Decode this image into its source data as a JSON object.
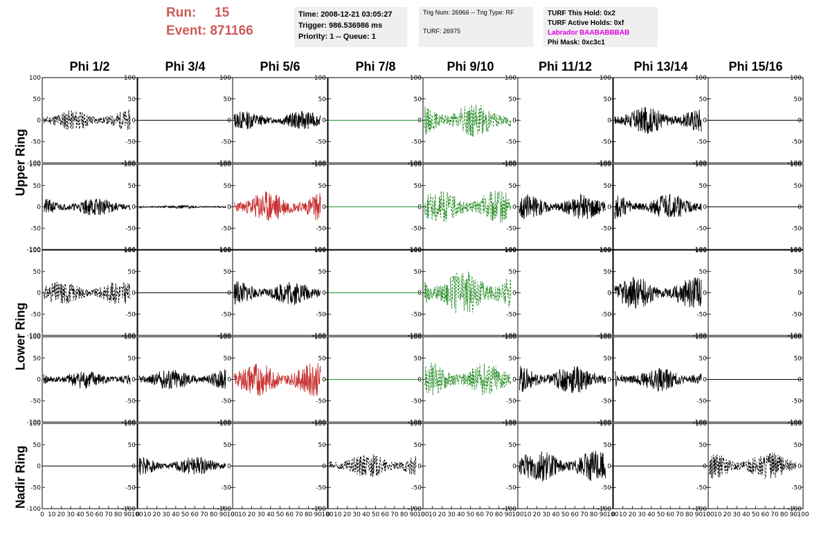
{
  "header": {
    "run_label": "Run:",
    "run_value": "15",
    "event_label": "Event:",
    "event_value": "871166",
    "time": "Time: 2008-12-21 03:05:27",
    "trigger": "Trigger: 986.536986 ms",
    "priority": "Priority: 1 -- Queue: 1",
    "trig_num": "Trig Num: 26966 -- Trig Type: RF",
    "turf": "TURF: 26975",
    "turf_hold": "TURF This Hold: 0x2",
    "turf_active": "TURF Active Holds: 0xf",
    "labrador": "Labrador BAABABBBAB",
    "phi_mask": "Phi Mask: 0xc3c1"
  },
  "columns": [
    "Phi 1/2",
    "Phi 3/4",
    "Phi 5/6",
    "Phi 7/8",
    "Phi 9/10",
    "Phi 11/12",
    "Phi 13/14",
    "Phi 15/16"
  ],
  "ring_labels": [
    "Upper Ring",
    "Lower Ring",
    "Nadir Ring"
  ],
  "colors": {
    "black": "#000000",
    "red": "#c83232",
    "green": "#228b22",
    "run_text": "#cd5a55",
    "labrador": "#e000e0",
    "box_bg": "#efefef"
  },
  "chart_data": {
    "type": "line",
    "description_units": "waveform amplitude vs sample",
    "xlim": [
      0,
      100
    ],
    "ylim": [
      -100,
      100
    ],
    "x_ticks": [
      "0",
      "10",
      "20",
      "30",
      "40",
      "50",
      "60",
      "70",
      "80",
      "90",
      "100"
    ],
    "y_ticks": [
      "-100",
      "-50",
      "0",
      "50",
      "100"
    ],
    "rows": [
      {
        "row": 0,
        "cells": [
          {
            "style": "dashed",
            "color": "black",
            "amp": 25,
            "seed": 11
          },
          {
            "style": "flat",
            "color": "black",
            "amp": 0,
            "seed": 0
          },
          {
            "style": "solid",
            "color": "black",
            "amp": 22,
            "seed": 13
          },
          {
            "style": "flat",
            "color": "green",
            "amp": 0,
            "seed": 0
          },
          {
            "style": "dashed",
            "color": "green",
            "amp": 40,
            "seed": 15
          },
          {
            "style": "none",
            "color": "black",
            "amp": 0,
            "seed": 0
          },
          {
            "style": "solid",
            "color": "black",
            "amp": 32,
            "seed": 17
          },
          {
            "style": "flat",
            "color": "black",
            "amp": 0,
            "seed": 0
          }
        ]
      },
      {
        "row": 1,
        "cells": [
          {
            "style": "solid",
            "color": "black",
            "amp": 22,
            "seed": 21
          },
          {
            "style": "solid",
            "color": "black",
            "amp": 4,
            "seed": 22
          },
          {
            "style": "solid",
            "color": "red",
            "amp": 38,
            "seed": 23
          },
          {
            "style": "flat",
            "color": "green",
            "amp": 0,
            "seed": 0
          },
          {
            "style": "dashed",
            "color": "green",
            "amp": 40,
            "seed": 25
          },
          {
            "style": "solid",
            "color": "black",
            "amp": 30,
            "seed": 26
          },
          {
            "style": "solid",
            "color": "black",
            "amp": 30,
            "seed": 27
          },
          {
            "style": "flat",
            "color": "black",
            "amp": 0,
            "seed": 0
          }
        ]
      },
      {
        "row": 2,
        "cells": [
          {
            "style": "dashed",
            "color": "black",
            "amp": 28,
            "seed": 31
          },
          {
            "style": "flat",
            "color": "black",
            "amp": 0,
            "seed": 0
          },
          {
            "style": "solid",
            "color": "black",
            "amp": 30,
            "seed": 33
          },
          {
            "style": "flat",
            "color": "green",
            "amp": 0,
            "seed": 0
          },
          {
            "style": "dashed",
            "color": "green",
            "amp": 55,
            "seed": 35
          },
          {
            "style": "none",
            "color": "black",
            "amp": 0,
            "seed": 0
          },
          {
            "style": "solid",
            "color": "black",
            "amp": 38,
            "seed": 37
          },
          {
            "style": "none",
            "color": "black",
            "amp": 0,
            "seed": 0
          }
        ]
      },
      {
        "row": 3,
        "cells": [
          {
            "style": "solid",
            "color": "black",
            "amp": 22,
            "seed": 41
          },
          {
            "style": "solid",
            "color": "black",
            "amp": 26,
            "seed": 42
          },
          {
            "style": "solid",
            "color": "red",
            "amp": 40,
            "seed": 43
          },
          {
            "style": "flat",
            "color": "green",
            "amp": 0,
            "seed": 0
          },
          {
            "style": "dashed",
            "color": "green",
            "amp": 40,
            "seed": 45
          },
          {
            "style": "solid",
            "color": "black",
            "amp": 35,
            "seed": 46
          },
          {
            "style": "solid",
            "color": "black",
            "amp": 28,
            "seed": 47
          },
          {
            "style": "flat",
            "color": "black",
            "amp": 0,
            "seed": 0
          }
        ]
      },
      {
        "row": 4,
        "cells": [
          {
            "style": "flat",
            "color": "black",
            "amp": 0,
            "seed": 0
          },
          {
            "style": "solid",
            "color": "black",
            "amp": 22,
            "seed": 52
          },
          {
            "style": "flat",
            "color": "black",
            "amp": 0,
            "seed": 0
          },
          {
            "style": "dashed",
            "color": "black",
            "amp": 30,
            "seed": 54
          },
          {
            "style": "none",
            "color": "black",
            "amp": 0,
            "seed": 0
          },
          {
            "style": "solid",
            "color": "black",
            "amp": 38,
            "seed": 56
          },
          {
            "style": "flat",
            "color": "black",
            "amp": 0,
            "seed": 0
          },
          {
            "style": "dashed",
            "color": "black",
            "amp": 32,
            "seed": 58
          }
        ]
      }
    ]
  }
}
